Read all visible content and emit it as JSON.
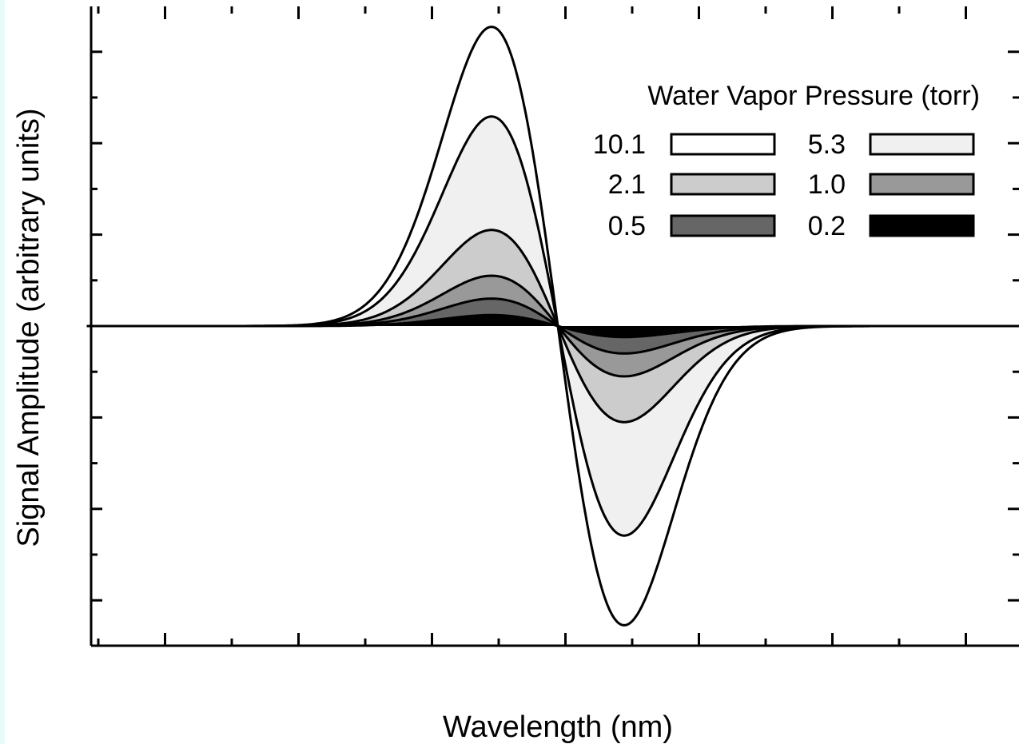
{
  "chart_data": {
    "type": "area",
    "title": "",
    "xlabel": "Wavelength (nm)",
    "ylabel": "Signal Amplitude (arbitrary units)",
    "x_tick_labels_shown": false,
    "y_tick_labels_shown": false,
    "grid": false,
    "legend": {
      "title": "Water Vapor Pressure (torr)",
      "placement": "top-right",
      "columns": 2
    },
    "line_shape": "second-derivative-like dispersion curve: positive peak left of the zero crossing, negative trough right of it",
    "x_units": "relative wavelength, zero crossing at 0, peak at -1, trough at +1",
    "xlim": [
      -7.1,
      7.0
    ],
    "ylim": [
      -3.5,
      3.5
    ],
    "series": [
      {
        "name": "10.1",
        "pressure": 10.1,
        "peak_x": -1.0,
        "peak_y": 3.27,
        "trough_x": 1.0,
        "trough_y": -3.27,
        "fill": "#ffffff"
      },
      {
        "name": "5.3",
        "pressure": 5.3,
        "peak_x": -1.0,
        "peak_y": 2.29,
        "trough_x": 1.0,
        "trough_y": -2.29,
        "fill": "#f0f0f0"
      },
      {
        "name": "2.1",
        "pressure": 2.1,
        "peak_x": -1.0,
        "peak_y": 1.05,
        "trough_x": 1.0,
        "trough_y": -1.05,
        "fill": "#cccccc"
      },
      {
        "name": "1.0",
        "pressure": 1.0,
        "peak_x": -1.0,
        "peak_y": 0.55,
        "trough_x": 1.0,
        "trough_y": -0.55,
        "fill": "#999999"
      },
      {
        "name": "0.5",
        "pressure": 0.5,
        "peak_x": -1.0,
        "peak_y": 0.3,
        "trough_x": 1.0,
        "trough_y": -0.3,
        "fill": "#666666"
      },
      {
        "name": "0.2",
        "pressure": 0.2,
        "peak_x": -1.0,
        "peak_y": 0.12,
        "trough_x": 1.0,
        "trough_y": -0.12,
        "fill": "#000000"
      }
    ]
  }
}
